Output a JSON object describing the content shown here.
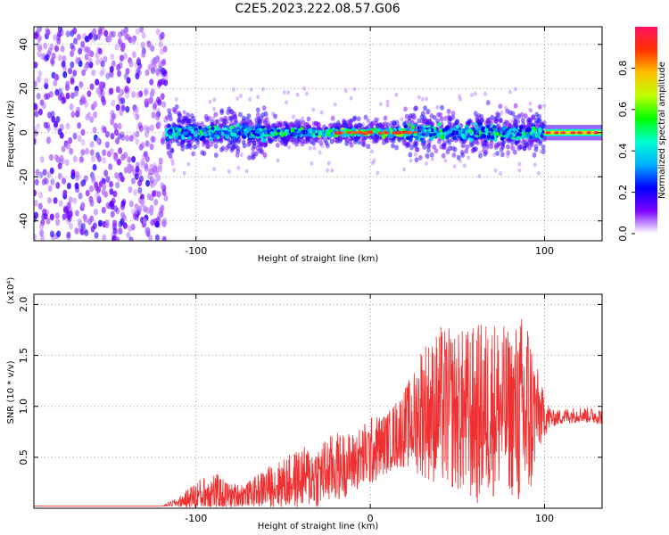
{
  "title": "C2E5.2023.222.08.57.G06",
  "colors": {
    "snr_line": "#f03030",
    "grid_dot": "#9a9a9a",
    "colormap": [
      "#ffffff",
      "#7a00ff",
      "#0000ff",
      "#00b0ff",
      "#00ffd0",
      "#00ff00",
      "#c0ff00",
      "#ffc000",
      "#ff3000",
      "#ff1060"
    ]
  },
  "chart_data": [
    {
      "type": "heatmap",
      "title": "",
      "xlabel": "Height of straight line (km)",
      "ylabel": "Frequency (Hz)",
      "xlim": [
        -193,
        133
      ],
      "ylim": [
        -49,
        48
      ],
      "xticks": [
        -100,
        0,
        100
      ],
      "xtick_labels": [
        "-100",
        "",
        "100"
      ],
      "yticks": [
        -40,
        -20,
        0,
        20,
        40
      ],
      "ytick_labels": [
        "-40",
        "-20",
        "0",
        "20",
        "40"
      ],
      "grid": true,
      "colorbar": {
        "label": "Normalized spectral amplitude",
        "range": [
          0.0,
          1.0
        ],
        "ticks": [
          0.0,
          0.2,
          0.4,
          0.6,
          0.8
        ],
        "tick_labels": [
          "0.0",
          "0.2",
          "0.4",
          "0.6",
          "0.8"
        ]
      },
      "regions": [
        {
          "description": "broadband noise",
          "x_range": [
            -193,
            -117
          ],
          "y_range": [
            -49,
            48
          ],
          "amplitude": 0.15
        },
        {
          "description": "signal band",
          "x_range": [
            -117,
            100
          ],
          "center_hz": 0,
          "half_width_hz": 10,
          "amplitude": 0.5
        },
        {
          "description": "narrow line",
          "x_range": [
            100,
            133
          ],
          "center_hz": 0,
          "half_width_hz": 2,
          "amplitude": 0.95
        }
      ]
    },
    {
      "type": "line",
      "title": "",
      "xlabel": "Height of straight line (km)",
      "ylabel": "SNR (10 * v/v)",
      "y_multiplier": "(x10⁴)",
      "xlim": [
        -193,
        133
      ],
      "ylim": [
        0,
        2.1
      ],
      "xticks": [
        -100,
        0,
        100
      ],
      "xtick_labels": [
        "-100",
        "0",
        "100"
      ],
      "yticks": [
        0.5,
        1.0,
        1.5,
        2.0
      ],
      "ytick_labels": [
        "0.5",
        "1.0",
        "1.5",
        "2.0"
      ],
      "grid": true,
      "series": [
        {
          "x": [
            -193,
            -150,
            -120,
            -110,
            -100,
            -90,
            -80,
            -70,
            -60,
            -50,
            -40,
            -30,
            -20,
            -10,
            0,
            10,
            20,
            25,
            30,
            35,
            40,
            50,
            60,
            70,
            80,
            90,
            95,
            100,
            105,
            110,
            120,
            133
          ],
          "y": [
            0.02,
            0.02,
            0.02,
            0.06,
            0.12,
            0.16,
            0.12,
            0.14,
            0.2,
            0.24,
            0.3,
            0.32,
            0.4,
            0.45,
            0.55,
            0.65,
            0.8,
            0.85,
            1.0,
            0.95,
            1.0,
            0.95,
            0.9,
            1.0,
            0.95,
            0.9,
            0.95,
            0.9,
            0.88,
            0.9,
            0.92,
            0.9
          ],
          "spread": [
            0,
            0,
            0,
            0.05,
            0.15,
            0.2,
            0.12,
            0.12,
            0.2,
            0.25,
            0.3,
            0.32,
            0.35,
            0.3,
            0.35,
            0.3,
            0.4,
            0.5,
            0.7,
            0.7,
            0.8,
            0.8,
            0.9,
            0.9,
            0.8,
            1.1,
            0.5,
            0.2,
            0.08,
            0.08,
            0.08,
            0.08
          ]
        }
      ]
    }
  ]
}
